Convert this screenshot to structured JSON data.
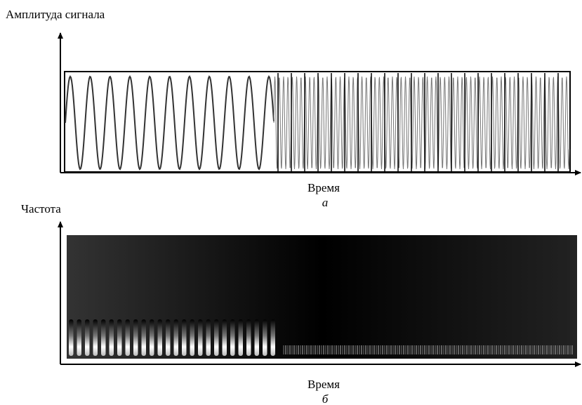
{
  "panel_a": {
    "y_axis_label": "Амплитуда сигнала",
    "x_axis_label": "Время",
    "caption": "а"
  },
  "panel_b": {
    "y_axis_label": "Частота",
    "x_axis_label": "Время",
    "caption": "б"
  }
}
